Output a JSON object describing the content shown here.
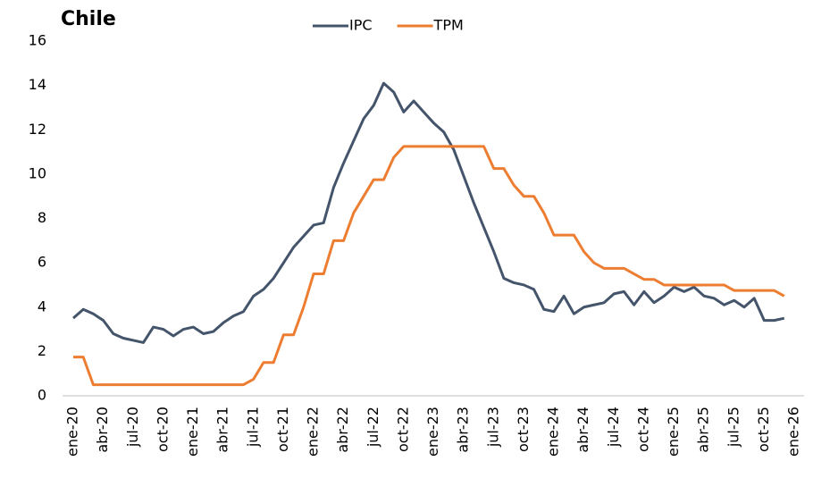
{
  "chart_data": {
    "type": "line",
    "title": "Chile",
    "categories": [
      "ene-20",
      null,
      null,
      "abr-20",
      null,
      null,
      "jul-20",
      null,
      null,
      "oct-20",
      null,
      null,
      "ene-21",
      null,
      null,
      "abr-21",
      null,
      null,
      "jul-21",
      null,
      null,
      "oct-21",
      null,
      null,
      "ene-22",
      null,
      null,
      "abr-22",
      null,
      null,
      "jul-22",
      null,
      null,
      "oct-22",
      null,
      null,
      "ene-23",
      null,
      null,
      "abr-23",
      null,
      null,
      "jul-23",
      null,
      null,
      "oct-23",
      null,
      null,
      "ene-24",
      null,
      null,
      "abr-24",
      null,
      null,
      "jul-24",
      null,
      null,
      "oct-24",
      null,
      null,
      "ene-25",
      null,
      null,
      "abr-25",
      null,
      null,
      "jul-25",
      null,
      null,
      "oct-25",
      null,
      null,
      "ene-26"
    ],
    "series": [
      {
        "name": "IPC",
        "color": "#44546a",
        "values": [
          3.5,
          3.9,
          3.7,
          3.4,
          2.8,
          2.6,
          2.5,
          2.4,
          3.1,
          3.0,
          2.7,
          3.0,
          3.1,
          2.8,
          2.9,
          3.3,
          3.6,
          3.8,
          4.5,
          4.8,
          5.3,
          6.0,
          6.7,
          7.2,
          7.7,
          7.8,
          9.4,
          10.5,
          11.5,
          12.5,
          13.1,
          14.1,
          13.7,
          12.8,
          13.3,
          12.8,
          12.3,
          11.9,
          11.1,
          9.9,
          8.7,
          7.6,
          6.5,
          5.3,
          5.1,
          5.0,
          4.8,
          3.9,
          3.8,
          4.5,
          3.7,
          4.0,
          4.1,
          4.2,
          4.6,
          4.7,
          4.1,
          4.7,
          4.2,
          4.5,
          4.9,
          4.7,
          4.9,
          4.5,
          4.4,
          4.1,
          4.3,
          4.0,
          4.4,
          3.4,
          3.4,
          3.5,
          null
        ]
      },
      {
        "name": "TPM",
        "color": "#ed7d31",
        "values": [
          1.75,
          1.75,
          0.5,
          0.5,
          0.5,
          0.5,
          0.5,
          0.5,
          0.5,
          0.5,
          0.5,
          0.5,
          0.5,
          0.5,
          0.5,
          0.5,
          0.5,
          0.5,
          0.75,
          1.5,
          1.5,
          2.75,
          2.75,
          4.0,
          5.5,
          5.5,
          7.0,
          7.0,
          8.25,
          9.0,
          9.75,
          9.75,
          10.75,
          11.25,
          11.25,
          11.25,
          11.25,
          11.25,
          11.25,
          11.25,
          11.25,
          11.25,
          10.25,
          10.25,
          9.5,
          9.0,
          9.0,
          8.25,
          7.25,
          7.25,
          7.25,
          6.5,
          6.0,
          5.75,
          5.75,
          5.75,
          5.5,
          5.25,
          5.25,
          5.0,
          5.0,
          5.0,
          5.0,
          5.0,
          5.0,
          5.0,
          4.75,
          4.75,
          4.75,
          4.75,
          4.75,
          4.5,
          null
        ]
      }
    ],
    "ylim": [
      0,
      16
    ],
    "yticks": [
      0,
      2,
      4,
      6,
      8,
      10,
      12,
      14,
      16
    ],
    "grid": false,
    "legend": "top"
  }
}
